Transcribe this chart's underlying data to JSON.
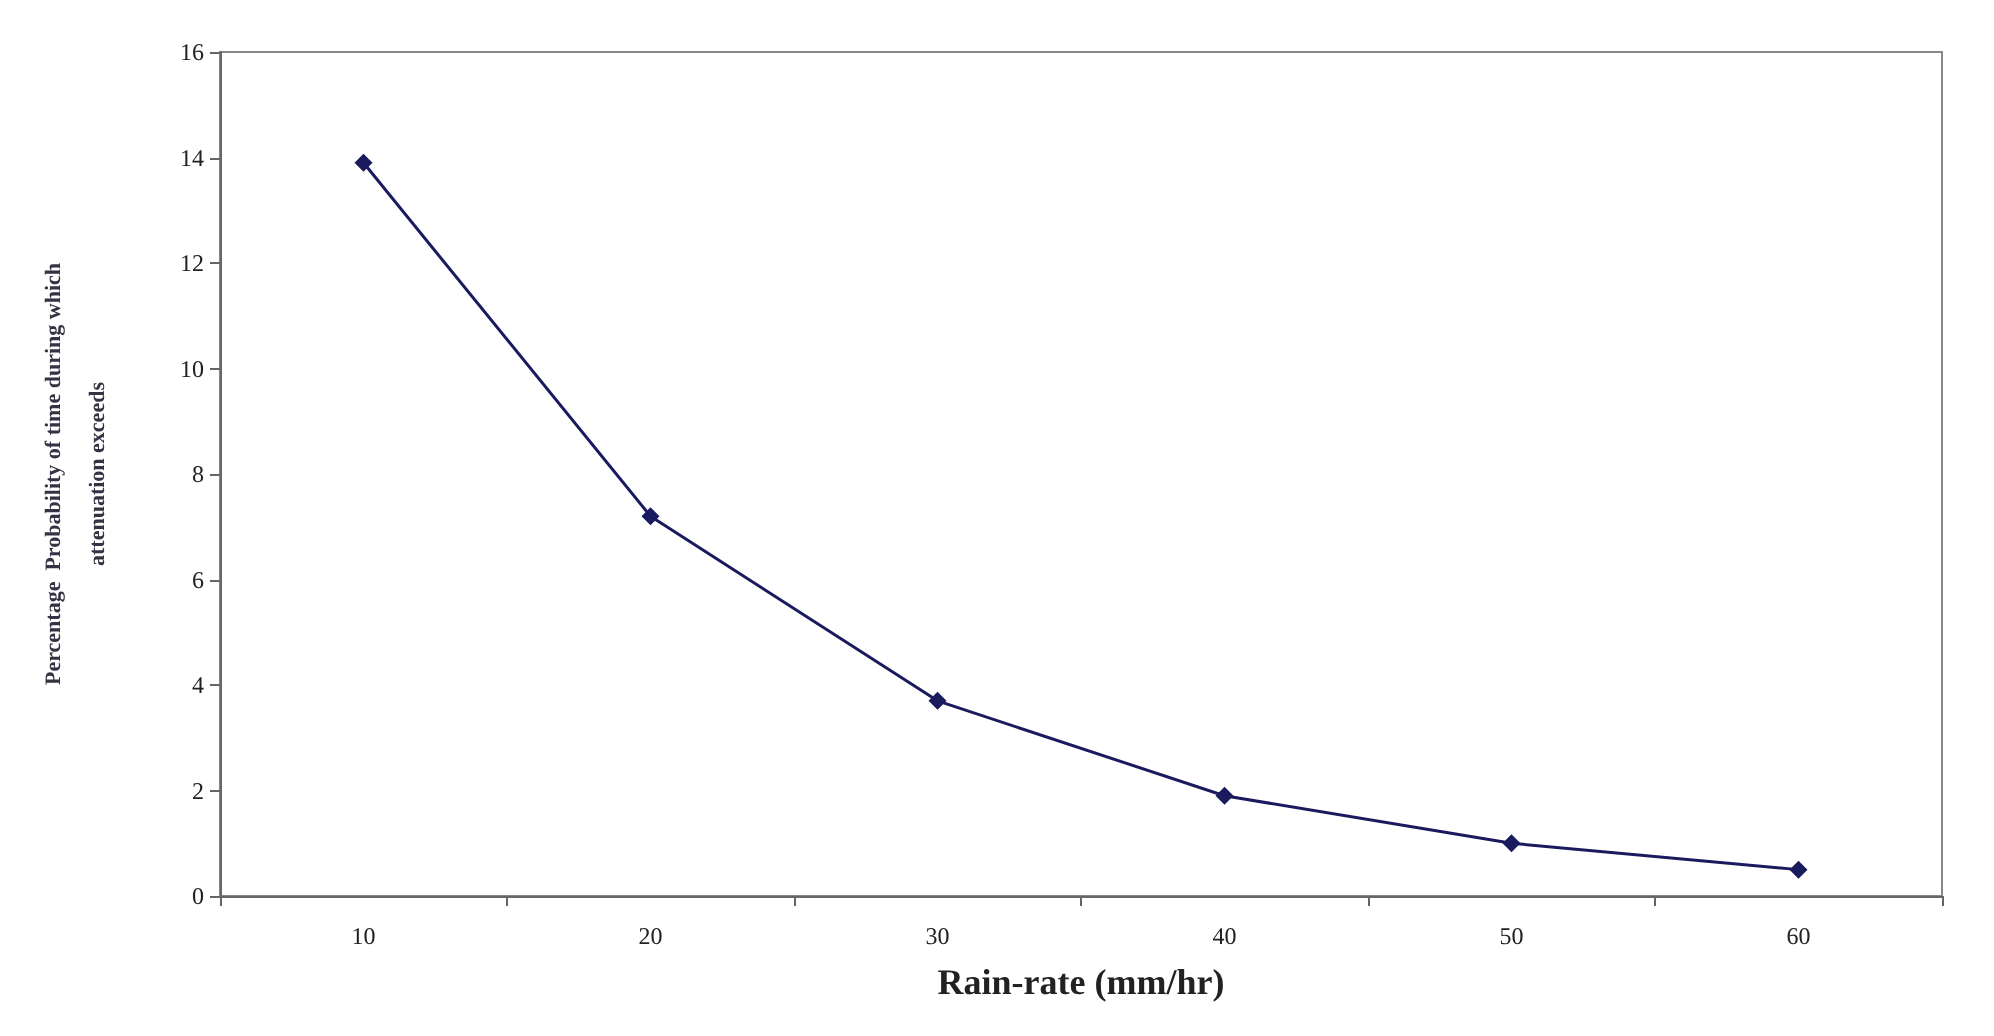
{
  "chart_data": {
    "type": "line",
    "xlabel": "Rain-rate (mm/hr)",
    "ylabel": "Percentage  Probability of time during which\nattenuation exceeds",
    "categories": [
      "10",
      "20",
      "30",
      "40",
      "50",
      "60"
    ],
    "series": [
      {
        "color": "#1a1a5e",
        "values": [
          13.9,
          7.2,
          3.7,
          1.9,
          1.0,
          0.5
        ]
      }
    ],
    "ylim": [
      0,
      16
    ],
    "yticks": [
      0,
      2,
      4,
      6,
      8,
      10,
      12,
      14,
      16
    ],
    "grid": false,
    "marker": "diamond",
    "line_style": "solid"
  }
}
